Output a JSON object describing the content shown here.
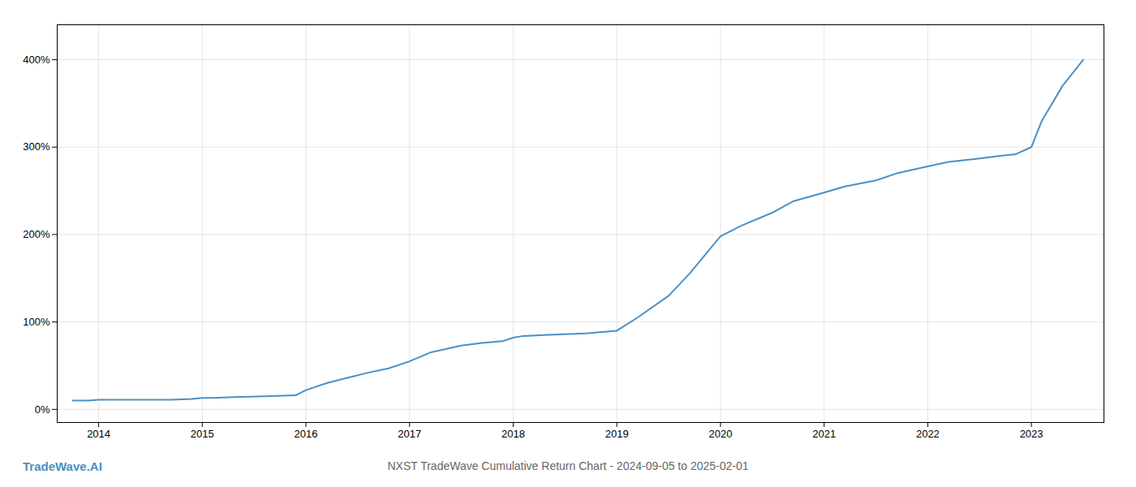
{
  "chart_data": {
    "type": "line",
    "title": "NXST TradeWave Cumulative Return Chart - 2024-09-05 to 2025-02-01",
    "annotations": [
      "TradeWave.AI"
    ],
    "color": "#4a90c4",
    "grid": true,
    "x": [
      2013.75,
      2013.9,
      2014.0,
      2014.2,
      2014.5,
      2014.7,
      2014.9,
      2015.0,
      2015.1,
      2015.3,
      2015.6,
      2015.9,
      2016.0,
      2016.2,
      2016.4,
      2016.6,
      2016.8,
      2017.0,
      2017.2,
      2017.5,
      2017.7,
      2017.9,
      2018.0,
      2018.1,
      2018.3,
      2018.5,
      2018.7,
      2019.0,
      2019.2,
      2019.5,
      2019.7,
      2020.0,
      2020.2,
      2020.5,
      2020.7,
      2021.0,
      2021.2,
      2021.5,
      2021.7,
      2022.0,
      2022.2,
      2022.5,
      2022.7,
      2022.85,
      2023.0,
      2023.1,
      2023.3,
      2023.5
    ],
    "values": [
      10,
      10,
      11,
      11,
      11,
      11,
      12,
      13,
      13,
      14,
      15,
      16,
      22,
      30,
      36,
      42,
      47,
      55,
      65,
      73,
      76,
      78,
      82,
      84,
      85,
      86,
      87,
      90,
      105,
      130,
      155,
      198,
      210,
      225,
      238,
      248,
      255,
      262,
      270,
      278,
      283,
      287,
      290,
      292,
      300,
      330,
      370,
      400
    ],
    "xlim": [
      2013.6,
      2023.7
    ],
    "xticks": [
      2014,
      2015,
      2016,
      2017,
      2018,
      2019,
      2020,
      2021,
      2022,
      2023
    ],
    "ylim": [
      -15,
      440
    ],
    "yticks": [
      {
        "value": 0,
        "label": "0%"
      },
      {
        "value": 100,
        "label": "100%"
      },
      {
        "value": 200,
        "label": "200%"
      },
      {
        "value": 300,
        "label": "300%"
      },
      {
        "value": 400,
        "label": "400%"
      }
    ]
  }
}
